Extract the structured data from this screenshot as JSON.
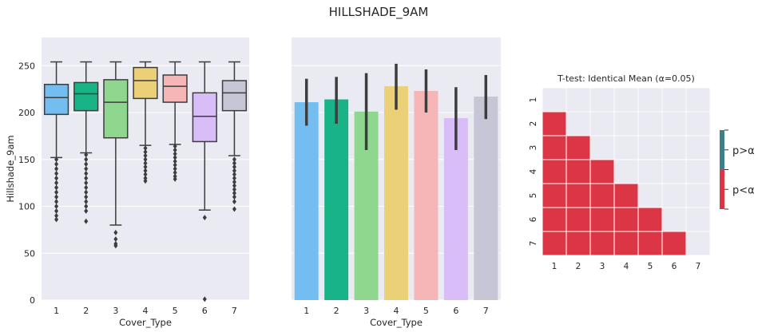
{
  "title": "HILLSHADE_9AM",
  "chart_data": [
    {
      "type": "box",
      "xlabel": "Cover_Type",
      "ylabel": "Hillshade_9am",
      "categories": [
        "1",
        "2",
        "3",
        "4",
        "5",
        "6",
        "7"
      ],
      "ylim": [
        0,
        280
      ],
      "yticks": [
        "0",
        "50",
        "100",
        "150",
        "200",
        "250"
      ],
      "colors": [
        "#74bdf0",
        "#19b388",
        "#8fd68e",
        "#ecd078",
        "#f6b6b7",
        "#d9bdf8",
        "#c7c6d6"
      ],
      "boxes": [
        {
          "q1": 198,
          "median": 216,
          "q3": 230,
          "whislo": 152,
          "whishi": 254,
          "outliers": [
            150,
            145,
            140,
            135,
            130,
            125,
            120,
            115,
            110,
            105,
            100,
            95,
            90,
            86
          ]
        },
        {
          "q1": 202,
          "median": 220,
          "q3": 232,
          "whislo": 157,
          "whishi": 254,
          "outliers": [
            155,
            150,
            145,
            140,
            135,
            130,
            125,
            120,
            115,
            110,
            105,
            100,
            95,
            84
          ]
        },
        {
          "q1": 173,
          "median": 211,
          "q3": 235,
          "whislo": 80,
          "whishi": 254,
          "outliers": [
            72,
            65,
            60,
            58
          ]
        },
        {
          "q1": 215,
          "median": 234,
          "q3": 248,
          "whislo": 165,
          "whishi": 254,
          "outliers": [
            162,
            158,
            154,
            150,
            146,
            142,
            138,
            134,
            130,
            127
          ]
        },
        {
          "q1": 211,
          "median": 228,
          "q3": 240,
          "whislo": 166,
          "whishi": 254,
          "outliers": [
            164,
            160,
            156,
            152,
            148,
            144,
            140,
            136,
            132,
            129
          ]
        },
        {
          "q1": 169,
          "median": 196,
          "q3": 221,
          "whislo": 96,
          "whishi": 254,
          "outliers": [
            88,
            1
          ]
        },
        {
          "q1": 202,
          "median": 221,
          "q3": 234,
          "whislo": 154,
          "whishi": 254,
          "outliers": [
            150,
            146,
            142,
            138,
            134,
            130,
            126,
            122,
            118,
            114,
            110,
            105,
            97
          ]
        }
      ]
    },
    {
      "type": "bar",
      "xlabel": "Cover_Type",
      "categories": [
        "1",
        "2",
        "3",
        "4",
        "5",
        "6",
        "7"
      ],
      "values": [
        211,
        214,
        201,
        228,
        223,
        194,
        217
      ],
      "ci_low": [
        186,
        188,
        160,
        203,
        200,
        160,
        193
      ],
      "ci_high": [
        236,
        238,
        242,
        252,
        246,
        227,
        240
      ],
      "ylim": [
        0,
        280
      ],
      "colors": [
        "#74bdf0",
        "#19b388",
        "#8fd68e",
        "#ecd078",
        "#f6b6b7",
        "#d9bdf8",
        "#c7c6d6"
      ]
    },
    {
      "type": "heatmap",
      "title": "T-test: Identical Mean (α=0.05)",
      "row_labels": [
        "1",
        "2",
        "3",
        "4",
        "5",
        "6",
        "7"
      ],
      "col_labels": [
        "1",
        "2",
        "3",
        "4",
        "5",
        "6",
        "7"
      ],
      "matrix": [
        [
          null,
          null,
          null,
          null,
          null,
          null,
          null
        ],
        [
          1,
          null,
          null,
          null,
          null,
          null,
          null
        ],
        [
          1,
          1,
          null,
          null,
          null,
          null,
          null
        ],
        [
          1,
          1,
          1,
          null,
          null,
          null,
          null
        ],
        [
          1,
          1,
          1,
          1,
          null,
          null,
          null
        ],
        [
          1,
          1,
          1,
          1,
          1,
          null,
          null
        ],
        [
          1,
          1,
          1,
          1,
          1,
          1,
          null
        ]
      ],
      "legend": [
        {
          "label": "p>α",
          "color": "#3f7f8c"
        },
        {
          "label": "p<α",
          "color": "#dc3545"
        }
      ],
      "grid_color": "#eaeaf2"
    }
  ]
}
